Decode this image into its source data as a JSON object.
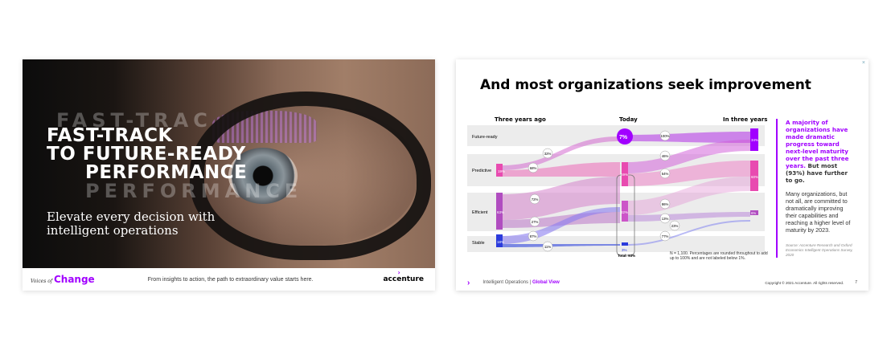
{
  "left_slide": {
    "ghost_lines": [
      "FAST-TRAC",
      "PERFORMANCE"
    ],
    "title_lines": [
      "FAST-TRACK",
      "TO FUTURE-READY",
      "PERFORMANCE"
    ],
    "subtitle": "Elevate every decision with intelligent operations",
    "footer": {
      "series_prefix": "Voices of",
      "series_name": "Change",
      "tagline": "From insights to action, the path to extraordinary value starts here.",
      "logo_text": "accenture"
    }
  },
  "right_slide": {
    "close_label": "×",
    "title": "And most organizations seek improvement",
    "columns": [
      "Three years ago",
      "Today",
      "In three years"
    ],
    "chart_data": {
      "type": "sankey",
      "stages": [
        "Three years ago",
        "Today",
        "In three years"
      ],
      "categories": [
        "Future-ready",
        "Predictive",
        "Efficient",
        "Stable"
      ],
      "three_years_ago": {
        "Future-ready": null,
        "Predictive": 19,
        "Efficient": 63,
        "Stable": 18
      },
      "today": {
        "Future-ready": 7,
        "Predictive": 59,
        "Efficient": 32,
        "Stable": 3
      },
      "in_three_years": {
        "Future-ready": 34,
        "Predictive": 60,
        "Efficient": 6,
        "Stable": null
      },
      "flow_labels_left": [
        "32%",
        "68%",
        "72%",
        "27%",
        "87%",
        "11%"
      ],
      "flow_labels_right": [
        "100%",
        "46%",
        "54%",
        "86%",
        "13%",
        "23%",
        "77%"
      ],
      "node_labels": {
        "ago": [
          "19%",
          "63%",
          "18%"
        ],
        "today": [
          "7%",
          "59%",
          "32%",
          "3%"
        ],
        "future": [
          "34%",
          "60%",
          "6%"
        ]
      },
      "total_label": "Total: 93%",
      "colors": {
        "future_ready": "#a100ff",
        "predictive": "#e84bb0",
        "efficient": "#b04dc0",
        "stable": "#2b3bdc"
      }
    },
    "note": "N = 1,100. Percentages are rounded throughout to add up to 100% and are not labeled below 1%.",
    "side": {
      "headline_parts": [
        "A majority of organizations",
        "have made dramatic progress toward next-level maturity over the past three years."
      ],
      "headline_tail": " But most (93%) have further to go.",
      "para": "Many organizations, but not all, are committed to dramatically improving their capabilities and reaching a higher level of maturity by 2023.",
      "source": "Source: Accenture Research and Oxford Economics Intelligent Operations Survey, 2020"
    },
    "footer": {
      "section": "Intelligent Operations |",
      "section_highlight": "Global View",
      "copyright": "Copyright © 2021 Accenture. All rights reserved.",
      "page": "7"
    }
  }
}
